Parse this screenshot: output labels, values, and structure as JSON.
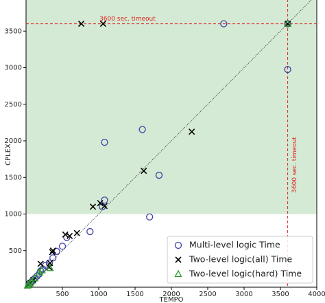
{
  "chart_data": {
    "type": "scatter",
    "xlabel": "TEMPO",
    "ylabel": "CPLEX",
    "xlim": [
      0,
      4000
    ],
    "ylim": [
      0,
      4000
    ],
    "xticks": [
      500,
      1000,
      1500,
      2000,
      2500,
      3000,
      3500,
      4000
    ],
    "yticks": [
      500,
      1000,
      1500,
      2000,
      2500,
      3000,
      3500
    ],
    "timeout": 3600,
    "shade_from": 1000,
    "shade_color": "#d4ead4",
    "annotations": [
      "3600 sec. timeout",
      "3600 sec. timeout"
    ],
    "legend": "lower right",
    "series": [
      {
        "name": "Multi-level logic Time",
        "marker": "circle",
        "color": "#3f3fa8",
        "x": [
          2720,
          3600,
          3600,
          1600,
          1080,
          1830,
          1080,
          1050,
          1700,
          880,
          560,
          500,
          420,
          370,
          320,
          270,
          230,
          200,
          180,
          150,
          120,
          100,
          80,
          60,
          40
        ],
        "values": [
          3600,
          3600,
          2975,
          2155,
          1980,
          1530,
          1190,
          1100,
          960,
          760,
          680,
          560,
          490,
          400,
          330,
          300,
          250,
          220,
          180,
          150,
          120,
          100,
          80,
          60,
          40
        ]
      },
      {
        "name": "Two-level logic(all) Time",
        "marker": "x",
        "color": "#000000",
        "x": [
          760,
          1060,
          3600,
          2280,
          1620,
          920,
          1020,
          1080,
          540,
          600,
          700,
          370,
          360,
          330,
          200,
          320,
          100,
          60,
          40
        ],
        "values": [
          3600,
          3600,
          3600,
          2125,
          1590,
          1100,
          1150,
          1110,
          720,
          700,
          740,
          500,
          480,
          330,
          320,
          270,
          100,
          60,
          40
        ]
      },
      {
        "name": "Two-level logic(hard) Time",
        "marker": "triangle",
        "color": "#2a9a2a",
        "x": [
          3600,
          330,
          220,
          180,
          120,
          80,
          50,
          30,
          20
        ],
        "values": [
          3600,
          260,
          230,
          200,
          120,
          80,
          50,
          30,
          20
        ]
      }
    ]
  }
}
